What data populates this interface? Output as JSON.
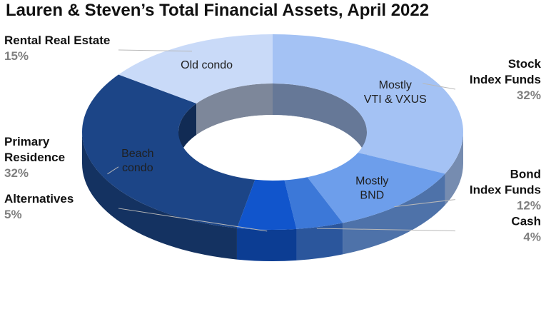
{
  "chart_data": {
    "type": "pie",
    "variant": "3d-donut",
    "title": "Lauren & Steven’s Total Financial Assets, April 2022",
    "slices": [
      {
        "label_lines": [
          "Stock",
          "Index Funds"
        ],
        "value": 32,
        "value_label": "32%",
        "inner_lines": [
          "Mostly",
          "VTI & VXUS"
        ],
        "color": "#a4c2f4",
        "inner_text_color": "#1f1f1f"
      },
      {
        "label_lines": [
          "Bond",
          "Index Funds"
        ],
        "value": 12,
        "value_label": "12%",
        "inner_lines": [
          "Mostly",
          "BND"
        ],
        "color": "#6d9eeb",
        "inner_text_color": "#1f1f1f"
      },
      {
        "label_lines": [
          "Cash"
        ],
        "value": 4,
        "value_label": "4%",
        "inner_lines": [],
        "color": "#3c78d8",
        "inner_text_color": "#ffffff"
      },
      {
        "label_lines": [
          "Alternatives"
        ],
        "value": 5,
        "value_label": "5%",
        "inner_lines": [],
        "color": "#1155cc",
        "inner_text_color": "#ffffff"
      },
      {
        "label_lines": [
          "Primary",
          "Residence"
        ],
        "value": 32,
        "value_label": "32%",
        "inner_lines": [
          "Beach",
          "condo"
        ],
        "color": "#1c4587",
        "inner_text_color": "#1f1f1f"
      },
      {
        "label_lines": [
          "Rental Real Estate"
        ],
        "value": 15,
        "value_label": "15%",
        "inner_lines": [
          "Old condo"
        ],
        "color": "#c9daf8",
        "inner_text_color": "#1f1f1f"
      }
    ],
    "legend": "none",
    "start": "top",
    "direction": "clockwise"
  }
}
